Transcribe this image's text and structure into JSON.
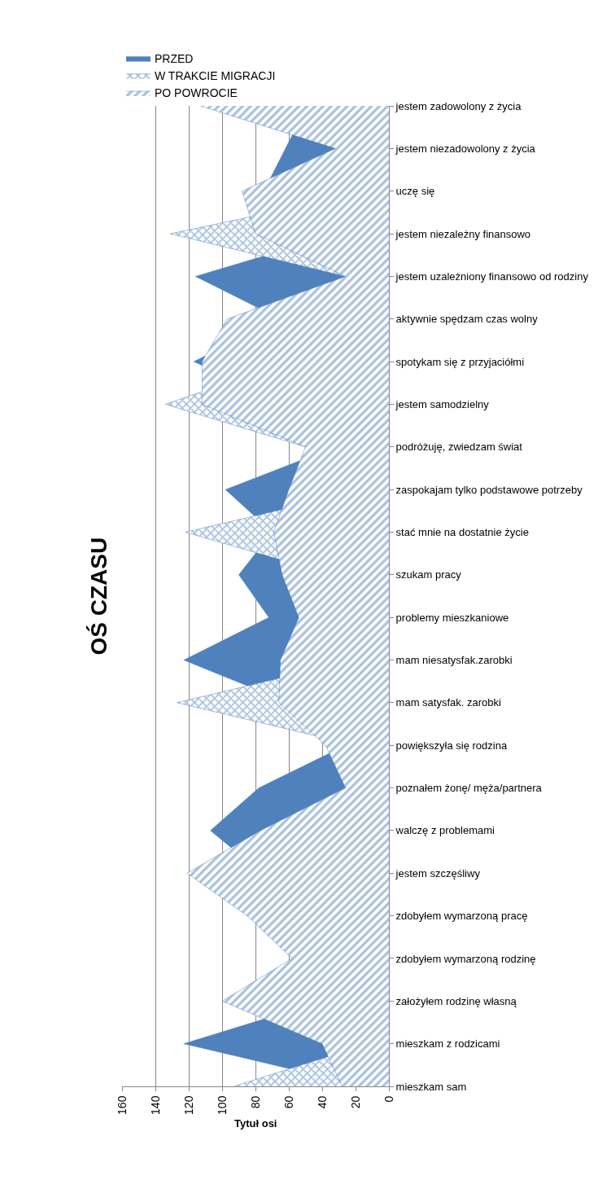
{
  "chart_data": {
    "type": "area",
    "orientation": "horizontal",
    "title": "OŚ CZASU",
    "xlabel": "Tytuł osi",
    "categories": [
      "jestem zadowolony z życia",
      "jestem niezadowolony z życia",
      "uczę się",
      "jestem niezależny finansowo",
      "jestem uzależniony finansowo od rodziny",
      "aktywnie spędzam czas wolny",
      "spotykam się z przyjaciółmi",
      "jestem samodzielny",
      "podróżuję, zwiedzam świat",
      "zaspokajam tylko podstawowe potrzeby",
      "stać mnie na dostatnie życie",
      "szukam pracy",
      "problemy mieszkaniowe",
      "mam niesatysfak.zarobki",
      "mam satysfak. zarobki",
      "powiększyła się rodzina",
      "poznałem żonę/ męża/partnera",
      "walczę z problemami",
      "jestem szczęśliwy",
      "zdobyłem wymarzoną pracę",
      "zdobyłem wymarzoną rodzinę",
      "założyłem rodzinę własną",
      "mieszkam z rodzicami",
      "mieszkam sam"
    ],
    "series": [
      {
        "name": "PRZED",
        "color": "#4f81bd",
        "values": [
          49,
          62,
          75,
          30,
          116,
          65,
          117,
          60,
          32,
          98,
          70,
          90,
          72,
          123,
          60,
          26,
          78,
          107,
          76,
          50,
          45,
          40,
          123,
          15
        ]
      },
      {
        "name": "W TRAKCIE MIGRACJI",
        "color": "#4f81bd",
        "values": [
          97,
          30,
          10,
          131,
          26,
          30,
          60,
          134,
          50,
          13,
          122,
          34,
          40,
          20,
          127,
          20,
          20,
          20,
          20,
          20,
          20,
          20,
          12,
          93
        ]
      },
      {
        "name": "PO POWROCIE",
        "color": "#4f81bd",
        "values": [
          113,
          32,
          88,
          80,
          26,
          97,
          112,
          112,
          50,
          60,
          69,
          64,
          54,
          65,
          66,
          38,
          26,
          77,
          121,
          85,
          58,
          100,
          40,
          28
        ]
      }
    ],
    "xlim": [
      160,
      0
    ],
    "xticks": [
      0,
      20,
      40,
      60,
      80,
      100,
      120,
      140,
      160
    ],
    "grid": "x",
    "legend": "top left"
  }
}
